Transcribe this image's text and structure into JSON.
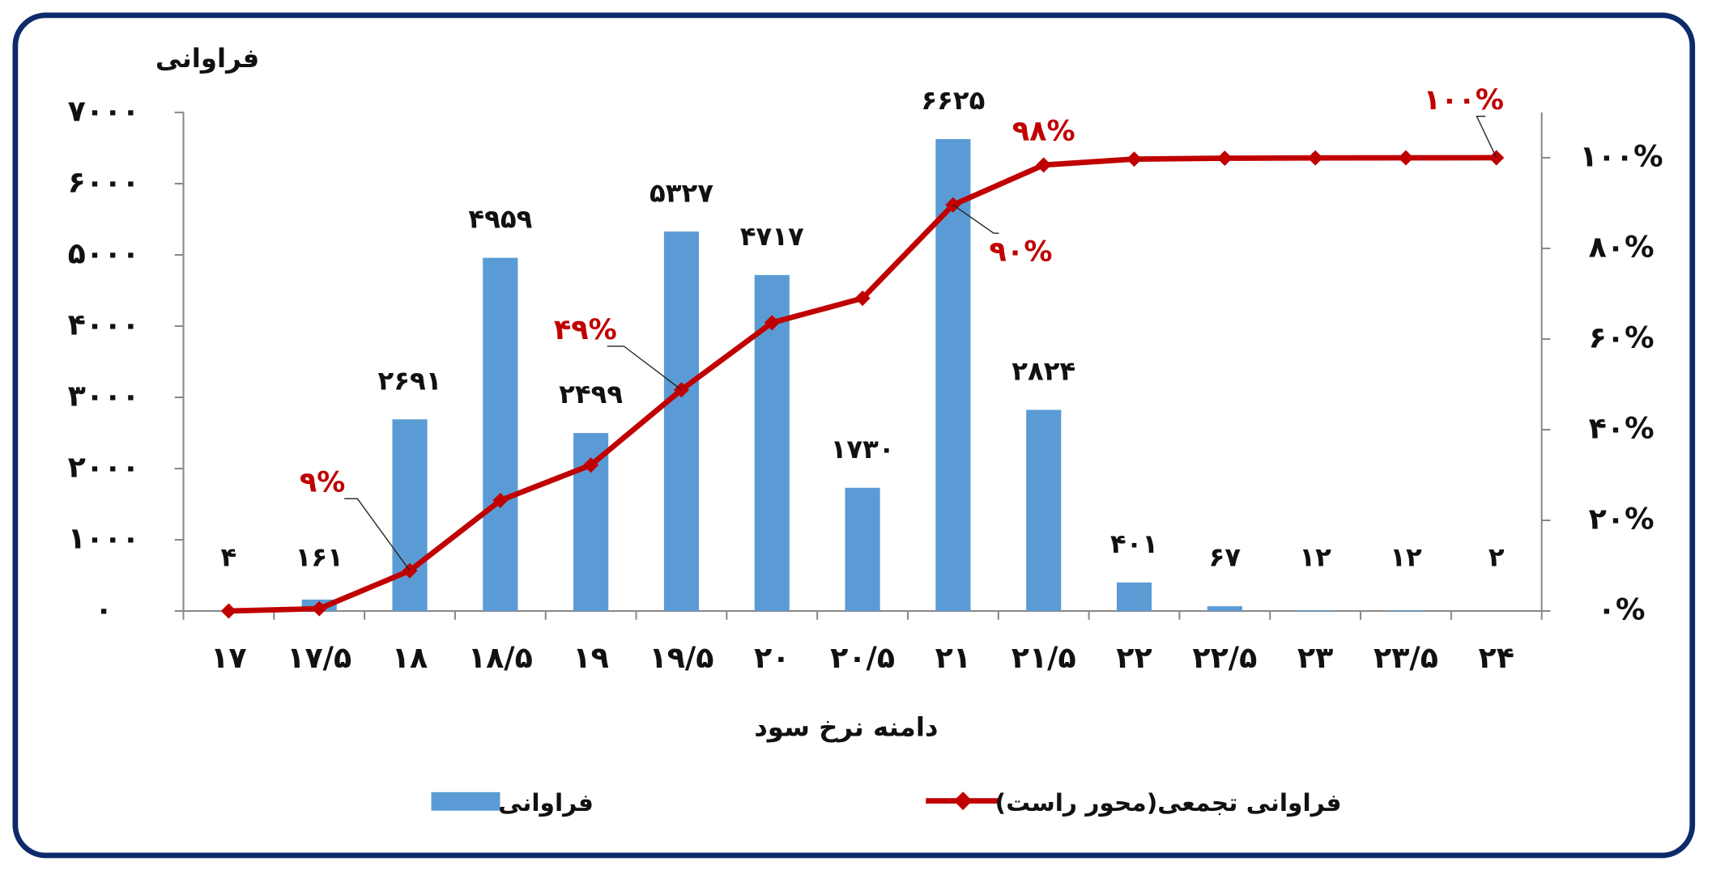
{
  "chart_data": {
    "type": "bar-line",
    "y_axis_label": "فراوانی",
    "x_axis_label": "دامنه نرخ سود",
    "categories": [
      "۱۷",
      "۱۷/۵",
      "۱۸",
      "۱۸/۵",
      "۱۹",
      "۱۹/۵",
      "۲۰",
      "۲۰/۵",
      "۲۱",
      "۲۱/۵",
      "۲۲",
      "۲۲/۵",
      "۲۳",
      "۲۳/۵",
      "۲۴"
    ],
    "series": [
      {
        "name": "فراوانی",
        "type": "bar",
        "color": "#5b9bd5",
        "values": [
          4,
          161,
          2691,
          4959,
          2499,
          5327,
          4717,
          1730,
          6625,
          2824,
          401,
          67,
          12,
          12,
          2
        ],
        "value_labels": [
          "۴",
          "۱۶۱",
          "۲۶۹۱",
          "۴۹۵۹",
          "۲۴۹۹",
          "۵۳۲۷",
          "۴۷۱۷",
          "۱۷۳۰",
          "۶۶۲۵",
          "۲۸۲۴",
          "۴۰۱",
          "۶۷",
          "۱۲",
          "۱۲",
          "۲"
        ]
      },
      {
        "name": "فراوانی تجمعی(محور راست)",
        "type": "line",
        "axis": "y2",
        "color": "#c00000",
        "values": [
          0.01,
          0.52,
          8.9,
          24.4,
          32.2,
          48.8,
          63.6,
          69.0,
          89.6,
          98.4,
          99.7,
          99.9,
          99.96,
          99.99,
          100
        ],
        "value_labels": [
          null,
          null,
          "۹%",
          null,
          null,
          "۴۹%",
          null,
          null,
          "۹۰%",
          "۹۸%",
          null,
          null,
          null,
          null,
          "۱۰۰%"
        ]
      }
    ],
    "ylim": [
      0,
      7000
    ],
    "yticks": [
      {
        "value": 0,
        "label": "۰"
      },
      {
        "value": 1000,
        "label": "۱۰۰۰"
      },
      {
        "value": 2000,
        "label": "۲۰۰۰"
      },
      {
        "value": 3000,
        "label": "۳۰۰۰"
      },
      {
        "value": 4000,
        "label": "۴۰۰۰"
      },
      {
        "value": 5000,
        "label": "۵۰۰۰"
      },
      {
        "value": 6000,
        "label": "۶۰۰۰"
      },
      {
        "value": 7000,
        "label": "۷۰۰۰"
      }
    ],
    "y2lim": [
      0,
      110
    ],
    "y2ticks": [
      {
        "value": 0,
        "label": "۰%"
      },
      {
        "value": 20,
        "label": "۲۰%"
      },
      {
        "value": 40,
        "label": "۴۰%"
      },
      {
        "value": 60,
        "label": "۶۰%"
      },
      {
        "value": 80,
        "label": "۸۰%"
      },
      {
        "value": 100,
        "label": "۱۰۰%"
      }
    ],
    "grid": false
  }
}
